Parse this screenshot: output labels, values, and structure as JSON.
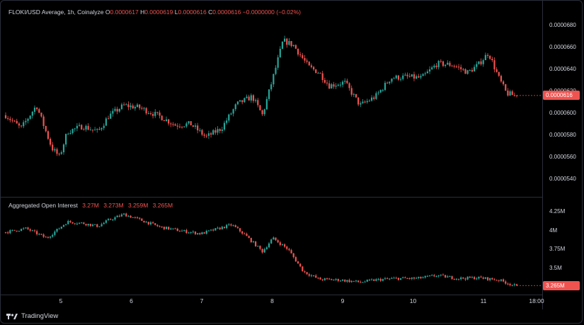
{
  "colors": {
    "up": "#26a69a",
    "down": "#ef5350",
    "text": "#d1d4dc",
    "grid": "#2a2e39",
    "bg": "#000000"
  },
  "price_pane": {
    "symbol": "FLOKI/USD Average, 1h, Coinalyze",
    "o_key": "O",
    "o": "0.0000617",
    "h_key": "H",
    "h": "0.0000619",
    "l_key": "L",
    "l": "0.0000616",
    "c_key": "C",
    "c": "0.0000616",
    "change": "−0.0000000 (−0.02%)",
    "last_price_tag": "0.0000616",
    "y_ticks": [
      "0.0000680",
      "0.0000660",
      "0.0000640",
      "0.0000620",
      "0.0000600",
      "0.0000580",
      "0.0000560",
      "0.0000540"
    ]
  },
  "oi_pane": {
    "title": "Aggregated Open Interest",
    "o": "3.27M",
    "h": "3.273M",
    "l": "3.259M",
    "c": "3.265M",
    "last_value_tag": "3.265M",
    "y_ticks": [
      "4.25M",
      "4M",
      "3.75M",
      "3.5M"
    ]
  },
  "x_ticks": [
    "5",
    "6",
    "7",
    "8",
    "9",
    "10",
    "11",
    "18:00"
  ],
  "brand": {
    "name": "TradingView",
    "icon": "tradingview-logo-icon"
  },
  "chart_data": [
    {
      "type": "candlestick",
      "title": "FLOKI/USD Average, 1h, Coinalyze",
      "x_labels": [
        "5",
        "6",
        "7",
        "8",
        "9",
        "10",
        "11",
        "18:00"
      ],
      "ylim": [
        5.3e-05,
        6.85e-05
      ],
      "close_path": [
        [
          0.0,
          5.98e-05
        ],
        [
          0.3,
          5.86e-05
        ],
        [
          0.6,
          6.07e-05
        ],
        [
          0.9,
          5.68e-05
        ],
        [
          1.05,
          5.6e-05
        ],
        [
          1.2,
          5.83e-05
        ],
        [
          1.5,
          5.88e-05
        ],
        [
          1.8,
          5.83e-05
        ],
        [
          2.0,
          5.97e-05
        ],
        [
          2.3,
          6.07e-05
        ],
        [
          2.6,
          6.05e-05
        ],
        [
          3.0,
          5.97e-05
        ],
        [
          3.3,
          5.89e-05
        ],
        [
          3.6,
          5.9e-05
        ],
        [
          3.9,
          5.78e-05
        ],
        [
          4.2,
          5.86e-05
        ],
        [
          4.5,
          6.08e-05
        ],
        [
          4.8,
          6.15e-05
        ],
        [
          5.0,
          5.98e-05
        ],
        [
          5.25,
          6.4e-05
        ],
        [
          5.4,
          6.66e-05
        ],
        [
          5.6,
          6.62e-05
        ],
        [
          5.9,
          6.42e-05
        ],
        [
          6.1,
          6.37e-05
        ],
        [
          6.3,
          6.25e-05
        ],
        [
          6.6,
          6.28e-05
        ],
        [
          6.9,
          6.07e-05
        ],
        [
          7.2,
          6.15e-05
        ],
        [
          7.5,
          6.32e-05
        ],
        [
          7.8,
          6.33e-05
        ],
        [
          8.1,
          6.32e-05
        ],
        [
          8.4,
          6.45e-05
        ],
        [
          8.7,
          6.44e-05
        ],
        [
          9.0,
          6.37e-05
        ],
        [
          9.2,
          6.44e-05
        ],
        [
          9.4,
          6.55e-05
        ],
        [
          9.6,
          6.32e-05
        ],
        [
          9.75,
          6.18e-05
        ],
        [
          9.9,
          6.16e-05
        ]
      ],
      "last": 6.16e-05
    },
    {
      "type": "candlestick",
      "title": "Aggregated Open Interest",
      "ylim": [
        3.22,
        4.34
      ],
      "close_path": [
        [
          0.0,
          3.98
        ],
        [
          0.4,
          4.03
        ],
        [
          0.8,
          3.9
        ],
        [
          1.2,
          4.12
        ],
        [
          1.5,
          4.1
        ],
        [
          1.8,
          4.06
        ],
        [
          2.0,
          4.14
        ],
        [
          2.3,
          4.22
        ],
        [
          2.6,
          4.15
        ],
        [
          3.0,
          4.05
        ],
        [
          3.4,
          4.0
        ],
        [
          3.8,
          3.96
        ],
        [
          4.2,
          4.04
        ],
        [
          4.4,
          4.08
        ],
        [
          4.65,
          3.95
        ],
        [
          5.0,
          3.72
        ],
        [
          5.2,
          3.9
        ],
        [
          5.5,
          3.75
        ],
        [
          5.8,
          3.45
        ],
        [
          6.1,
          3.35
        ],
        [
          6.5,
          3.34
        ],
        [
          6.9,
          3.31
        ],
        [
          7.2,
          3.34
        ],
        [
          7.6,
          3.36
        ],
        [
          8.0,
          3.36
        ],
        [
          8.4,
          3.4
        ],
        [
          8.8,
          3.36
        ],
        [
          9.2,
          3.37
        ],
        [
          9.6,
          3.34
        ],
        [
          9.9,
          3.265
        ]
      ],
      "last": 3.265
    }
  ]
}
